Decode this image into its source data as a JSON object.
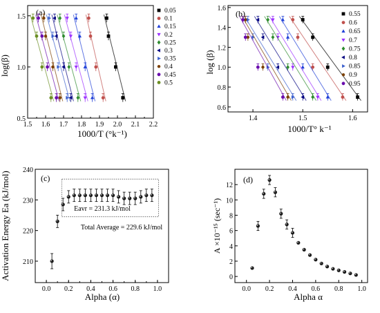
{
  "chart_data": [
    {
      "id": "a",
      "type": "scatter",
      "panel_label": "(a)",
      "xlabel": "1000/T (°k⁻¹)",
      "ylabel": "log(β)",
      "xlim": [
        1.5,
        2.2
      ],
      "ylim": [
        0.5,
        1.6
      ],
      "xticks": [
        "1.5",
        "1.6",
        "1.7",
        "1.8",
        "1.9",
        "2.0",
        "2.1",
        "2.2"
      ],
      "yticks": [
        "0.5",
        "1.0",
        "1.5"
      ],
      "ytick_values": [
        0.5,
        1.0,
        1.5
      ],
      "legend_position": "top-right",
      "y_levels": [
        0.699,
        1.0,
        1.301,
        1.477
      ],
      "series": [
        {
          "name": "0.05",
          "color": "#000000",
          "marker": "square",
          "x": [
            2.03,
            1.99,
            1.95,
            1.94
          ]
        },
        {
          "name": "0.1",
          "color": "#c0504d",
          "marker": "circle",
          "x": [
            1.92,
            1.88,
            1.85,
            1.84
          ]
        },
        {
          "name": "0.15",
          "color": "#1f3fd8",
          "marker": "triangle",
          "x": [
            1.86,
            1.82,
            1.79,
            1.77
          ]
        },
        {
          "name": "0.2",
          "color": "#9b30ff",
          "marker": "tri-down",
          "x": [
            1.82,
            1.77,
            1.74,
            1.72
          ]
        },
        {
          "name": "0.25",
          "color": "#2e8b2e",
          "marker": "diamond",
          "x": [
            1.78,
            1.73,
            1.7,
            1.68
          ]
        },
        {
          "name": "0.3",
          "color": "#000080",
          "marker": "tri-left",
          "x": [
            1.74,
            1.7,
            1.66,
            1.65
          ]
        },
        {
          "name": "0.35",
          "color": "#3a5fcd",
          "marker": "tri-right",
          "x": [
            1.72,
            1.67,
            1.64,
            1.62
          ]
        },
        {
          "name": "0.4",
          "color": "#7b3f00",
          "marker": "hexagon",
          "x": [
            1.68,
            1.64,
            1.6,
            1.59
          ]
        },
        {
          "name": "0.45",
          "color": "#6a0dad",
          "marker": "circle",
          "x": [
            1.66,
            1.61,
            1.58,
            1.56
          ]
        },
        {
          "name": "0.5",
          "color": "#6b8e23",
          "marker": "circle",
          "x": [
            1.63,
            1.58,
            1.55,
            1.53
          ]
        }
      ]
    },
    {
      "id": "b",
      "type": "scatter",
      "panel_label": "(b)",
      "xlabel": "1000/T° k⁻¹",
      "ylabel": "log (β)",
      "xlim": [
        1.35,
        1.63
      ],
      "ylim": [
        0.55,
        1.62
      ],
      "xticks": [
        "1.4",
        "1.5",
        "1.6"
      ],
      "xtick_values": [
        1.4,
        1.5,
        1.6
      ],
      "yticks": [
        "0.6",
        "0.8",
        "1.0",
        "1.2",
        "1.4",
        "1.6"
      ],
      "ytick_values": [
        0.6,
        0.8,
        1.0,
        1.2,
        1.4,
        1.6
      ],
      "legend_position": "top-right",
      "y_levels": [
        0.699,
        1.0,
        1.301,
        1.477
      ],
      "series": [
        {
          "name": "0.55",
          "color": "#000000",
          "marker": "square",
          "x": [
            1.61,
            1.55,
            1.52,
            1.5
          ]
        },
        {
          "name": "0.6",
          "color": "#c0504d",
          "marker": "circle",
          "x": [
            1.58,
            1.52,
            1.49,
            1.48
          ]
        },
        {
          "name": "0.65",
          "color": "#1f3fd8",
          "marker": "triangle",
          "x": [
            1.55,
            1.5,
            1.47,
            1.46
          ]
        },
        {
          "name": "0.7",
          "color": "#9b30ff",
          "marker": "tri-down",
          "x": [
            1.53,
            1.48,
            1.45,
            1.44
          ]
        },
        {
          "name": "0.75",
          "color": "#2e8b2e",
          "marker": "diamond",
          "x": [
            1.52,
            1.47,
            1.44,
            1.43
          ]
        },
        {
          "name": "0.8",
          "color": "#000080",
          "marker": "tri-left",
          "x": [
            1.5,
            1.45,
            1.42,
            1.41
          ]
        },
        {
          "name": "0.85",
          "color": "#3a5fcd",
          "marker": "tri-right",
          "x": [
            1.48,
            1.43,
            1.4,
            1.39
          ]
        },
        {
          "name": "0.9",
          "color": "#7b3f00",
          "marker": "hexagon",
          "x": [
            1.47,
            1.42,
            1.39,
            1.385
          ]
        },
        {
          "name": "0.95",
          "color": "#6a0dad",
          "marker": "circle",
          "x": [
            1.46,
            1.41,
            1.385,
            1.38
          ]
        }
      ]
    },
    {
      "id": "c",
      "type": "scatter",
      "panel_label": "(c)",
      "xlabel": "Alpha (α)",
      "ylabel": "Activation Energy Ea (kJ/mol)",
      "xlim": [
        -0.1,
        1.1
      ],
      "ylim": [
        203,
        240
      ],
      "xticks": [
        "0.0",
        "0.2",
        "0.4",
        "0.6",
        "0.8",
        "1.0"
      ],
      "xtick_values": [
        0.0,
        0.2,
        0.4,
        0.6,
        0.8,
        1.0
      ],
      "yticks": [
        "210",
        "220",
        "230",
        "240"
      ],
      "ytick_values": [
        210,
        220,
        230,
        240
      ],
      "annotations": [
        "Eavr = 231.3 kJ/mol",
        "Total Average = 229.6 kJ/mol"
      ],
      "x": [
        0.05,
        0.1,
        0.15,
        0.2,
        0.25,
        0.3,
        0.35,
        0.4,
        0.45,
        0.5,
        0.55,
        0.6,
        0.65,
        0.7,
        0.75,
        0.8,
        0.85,
        0.9,
        0.95
      ],
      "y": [
        210.0,
        223.0,
        228.5,
        231.0,
        231.5,
        231.5,
        231.5,
        231.5,
        231.5,
        231.5,
        231.5,
        231.5,
        231.0,
        230.5,
        230.5,
        230.5,
        231.0,
        231.5,
        231.5
      ]
    },
    {
      "id": "d",
      "type": "scatter",
      "panel_label": "(d)",
      "xlabel": "Alpha α",
      "ylabel": "A ×10⁻¹⁵ (sec⁻¹)",
      "xlim": [
        -0.1,
        1.05
      ],
      "ylim": [
        -0.8,
        14
      ],
      "xticks": [
        "0.0",
        "0.2",
        "0.4",
        "0.6",
        "0.8",
        "1.0"
      ],
      "xtick_values": [
        0.0,
        0.2,
        0.4,
        0.6,
        0.8,
        1.0
      ],
      "yticks": [
        "0",
        "2",
        "4",
        "6",
        "8",
        "10",
        "12"
      ],
      "ytick_values": [
        0,
        2,
        4,
        6,
        8,
        10,
        12
      ],
      "x": [
        0.05,
        0.1,
        0.15,
        0.2,
        0.25,
        0.3,
        0.35,
        0.4,
        0.45,
        0.5,
        0.55,
        0.6,
        0.65,
        0.7,
        0.75,
        0.8,
        0.85,
        0.9,
        0.95
      ],
      "y": [
        1.1,
        6.6,
        10.8,
        12.6,
        11.0,
        8.2,
        6.8,
        5.7,
        4.4,
        3.5,
        2.8,
        2.2,
        1.7,
        1.3,
        1.0,
        0.8,
        0.6,
        0.4,
        0.2
      ]
    }
  ]
}
